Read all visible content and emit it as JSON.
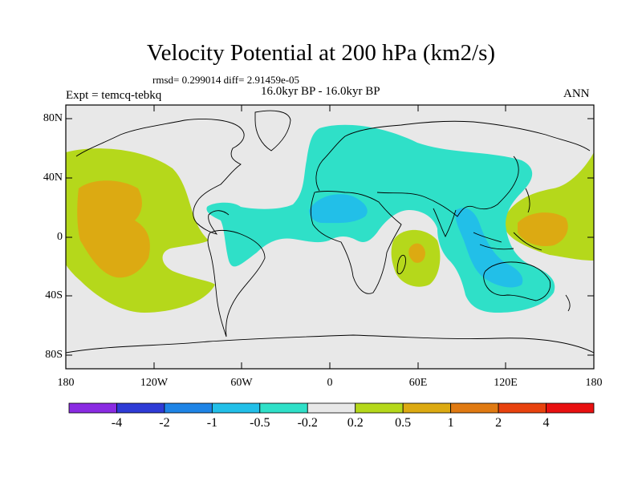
{
  "title": "Velocity Potential at 200 hPa (km2/s)",
  "stats": "rmsd= 0.299014 diff= 2.91459e-05",
  "period": "16.0kyr BP - 16.0kyr BP",
  "experiment": "Expt = temcq-tebkq",
  "season": "ANN",
  "lat_ticks": [
    "80N",
    "40N",
    "0",
    "40S",
    "80S"
  ],
  "lon_ticks": [
    "180",
    "120W",
    "60W",
    "0",
    "60E",
    "120E",
    "180"
  ],
  "colorbar": {
    "labels": [
      "-4",
      "-2",
      "-1",
      "-0.5",
      "-0.2",
      "0.2",
      "0.5",
      "1",
      "2",
      "4"
    ],
    "colors": [
      "#8a2be2",
      "#2e3bd6",
      "#1e84e6",
      "#22bfe8",
      "#2fe0c8",
      "#e8e8e8",
      "#b5d81b",
      "#dcaa12",
      "#e07a12",
      "#e8420e",
      "#e81010"
    ]
  },
  "field_colors": {
    "ocean_land_background": "#e8e8e8",
    "weak_negative": "#2fe0c8",
    "moderate_negative": "#22bfe8",
    "weak_positive": "#b5d81b",
    "moderate_positive": "#dcaa12"
  }
}
